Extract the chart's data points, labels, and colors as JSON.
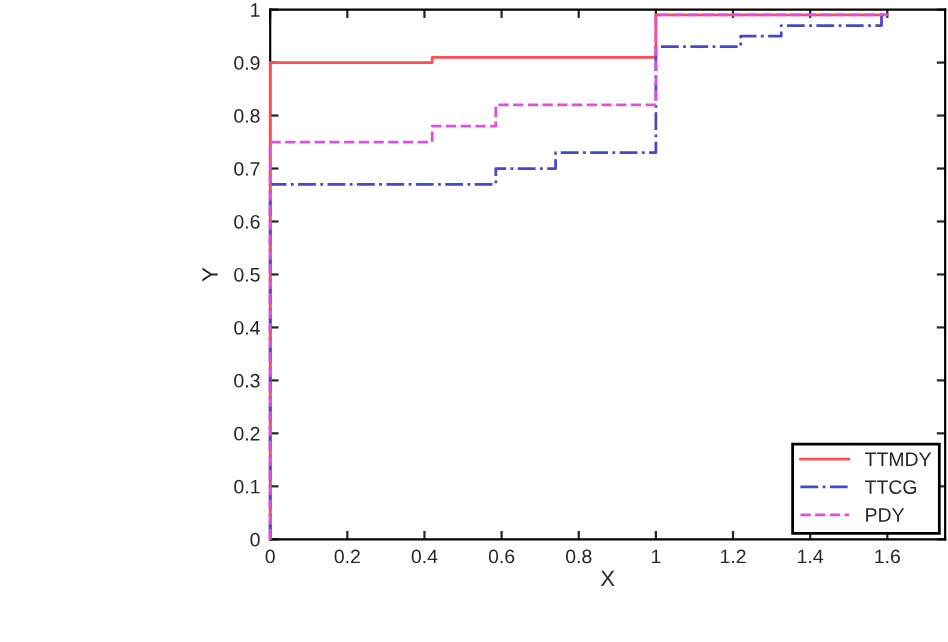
{
  "chart_data": {
    "type": "step",
    "xlabel": "X",
    "ylabel": "Y",
    "xlim": [
      0,
      1.75
    ],
    "ylim": [
      0,
      1
    ],
    "xticks": [
      0,
      0.2,
      0.4,
      0.6,
      0.8,
      1,
      1.2,
      1.4,
      1.6
    ],
    "yticks": [
      0,
      0.1,
      0.2,
      0.3,
      0.4,
      0.5,
      0.6,
      0.7,
      0.8,
      0.9,
      1
    ],
    "grid": false,
    "legend": "bottom right",
    "series": [
      {
        "name": "TTMDY",
        "color": "#ff5050",
        "line_style": "solid",
        "x": [
          0,
          0,
          0.42,
          1,
          1.6
        ],
        "values": [
          0,
          0.9,
          0.91,
          0.99,
          0.99
        ]
      },
      {
        "name": "TTCG",
        "color": "#4848c8",
        "line_style": "dashdot",
        "x": [
          0,
          0,
          0.585,
          0.74,
          1,
          1.22,
          1.325,
          1.585,
          1.6
        ],
        "values": [
          0,
          0.67,
          0.7,
          0.73,
          0.93,
          0.95,
          0.97,
          0.99,
          0.99
        ]
      },
      {
        "name": "PDY",
        "color": "#e050e0",
        "line_style": "dashed",
        "x": [
          0,
          0,
          0.42,
          0.585,
          1,
          1.6
        ],
        "values": [
          0,
          0.75,
          0.78,
          0.82,
          0.99,
          0.99
        ]
      }
    ]
  }
}
